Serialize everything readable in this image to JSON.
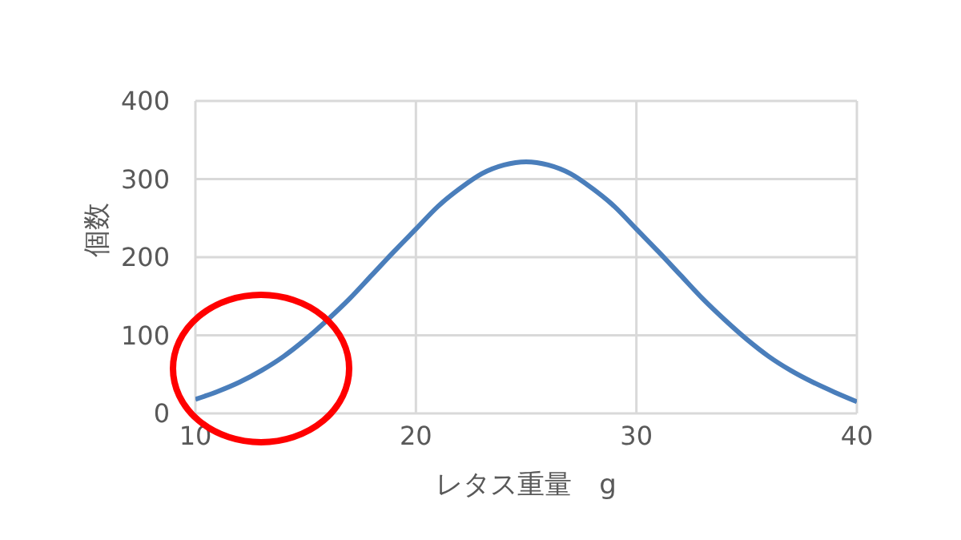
{
  "chart_data": {
    "type": "line",
    "xlabel": "レタス重量　g",
    "ylabel": "個数",
    "x": [
      10,
      11,
      12,
      13,
      14,
      15,
      16,
      17,
      18,
      19,
      20,
      21,
      22,
      23,
      24,
      25,
      26,
      27,
      28,
      29,
      30,
      31,
      32,
      33,
      34,
      35,
      36,
      37,
      38,
      39,
      40
    ],
    "series": [
      {
        "color": "#4a7ebb",
        "values": [
          18,
          28,
          40,
          55,
          73,
          95,
          120,
          147,
          177,
          207,
          236,
          265,
          288,
          307,
          318,
          322,
          318,
          307,
          288,
          265,
          236,
          207,
          177,
          147,
          120,
          95,
          73,
          55,
          40,
          27,
          15
        ]
      }
    ],
    "xlim": [
      10,
      40
    ],
    "xticks": [
      10,
      20,
      30,
      40
    ],
    "ylim": [
      0,
      400
    ],
    "yticks": [
      0,
      100,
      200,
      300,
      400
    ],
    "grid": true,
    "legend": false,
    "marker": "none",
    "line_style": "solid"
  }
}
